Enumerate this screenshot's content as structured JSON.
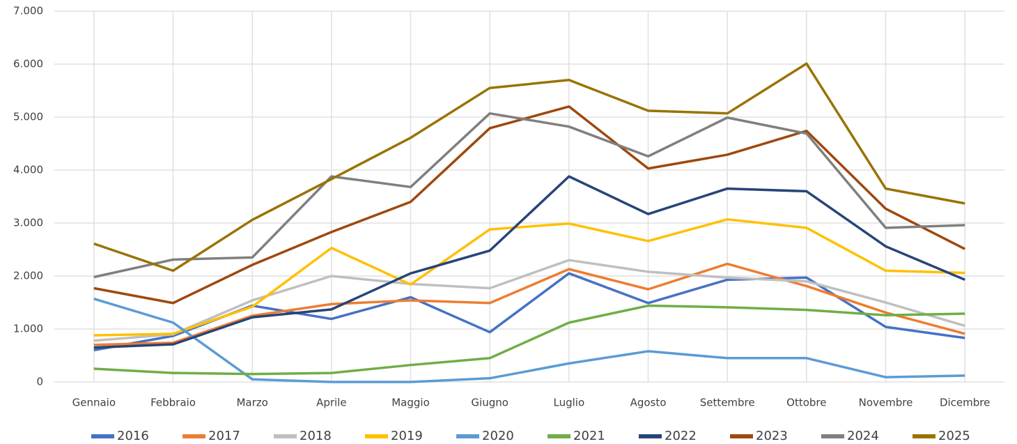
{
  "chart_data": {
    "type": "line",
    "categories": [
      "Gennaio",
      "Febbraio",
      "Marzo",
      "Aprile",
      "Maggio",
      "Giugno",
      "Luglio",
      "Agosto",
      "Settembre",
      "Ottobre",
      "Novembre",
      "Dicembre"
    ],
    "series": [
      {
        "name": "2016",
        "color": "#4472c4",
        "values": [
          600,
          870,
          1440,
          1190,
          1600,
          940,
          2050,
          1490,
          1930,
          1970,
          1040,
          830
        ]
      },
      {
        "name": "2017",
        "color": "#ed7d31",
        "values": [
          700,
          740,
          1250,
          1470,
          1540,
          1490,
          2130,
          1750,
          2230,
          1810,
          1310,
          910
        ]
      },
      {
        "name": "2018",
        "color": "#bfbfbf",
        "values": [
          780,
          900,
          1540,
          2000,
          1850,
          1770,
          2300,
          2080,
          1970,
          1900,
          1500,
          1060
        ]
      },
      {
        "name": "2019",
        "color": "#ffc000",
        "values": [
          880,
          910,
          1420,
          2530,
          1840,
          2880,
          2990,
          2660,
          3070,
          2910,
          2100,
          2060
        ]
      },
      {
        "name": "2020",
        "color": "#5b9bd5",
        "values": [
          1570,
          1120,
          50,
          0,
          0,
          70,
          350,
          580,
          450,
          450,
          90,
          120
        ]
      },
      {
        "name": "2021",
        "color": "#70ad47",
        "values": [
          250,
          170,
          150,
          170,
          320,
          450,
          1120,
          1440,
          1410,
          1360,
          1260,
          1290
        ]
      },
      {
        "name": "2022",
        "color": "#264478",
        "values": [
          650,
          710,
          1220,
          1370,
          2050,
          2480,
          3880,
          3170,
          3650,
          3600,
          2560,
          1930
        ]
      },
      {
        "name": "2023",
        "color": "#9e480e",
        "values": [
          1770,
          1490,
          2210,
          2830,
          3400,
          4790,
          5200,
          4030,
          4290,
          4740,
          3270,
          2510
        ]
      },
      {
        "name": "2024",
        "color": "#7f7f7f",
        "values": [
          1980,
          2310,
          2350,
          3880,
          3680,
          5070,
          4820,
          4260,
          4990,
          4690,
          2910,
          2960
        ]
      },
      {
        "name": "2025",
        "color": "#997300",
        "values": [
          2610,
          2100,
          3060,
          3830,
          4610,
          5550,
          5700,
          5120,
          5070,
          6010,
          3650,
          3370
        ]
      }
    ],
    "ylim": [
      0,
      7000
    ],
    "yticks": [
      0,
      {
        "value": 1000,
        "label": "1.000"
      },
      {
        "value": 2000,
        "label": "2.000"
      },
      {
        "value": 3000,
        "label": "3.000"
      },
      {
        "value": 4000,
        "label": "4.000"
      },
      {
        "value": 5000,
        "label": "5.000"
      },
      {
        "value": 6000,
        "label": "6.000"
      },
      {
        "value": 7000,
        "label": "7.000"
      }
    ],
    "grid": true,
    "legend": "bottom"
  }
}
